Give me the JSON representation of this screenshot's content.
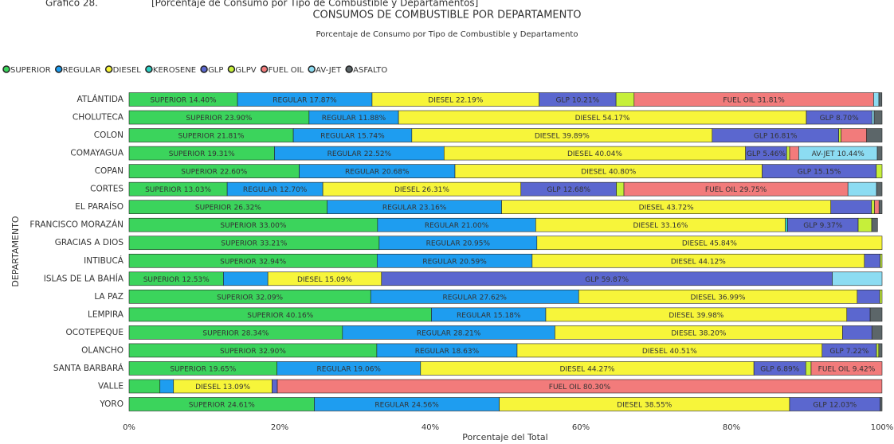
{
  "chart_data": {
    "type": "stacked_barh",
    "caption_label": "Gráfico 28.",
    "caption_text": "[Porcentaje de Consumo por Tipo de Combustible y Departamentos]",
    "title": "CONSUMOS DE COMBUSTIBLE POR DEPARTAMENTO",
    "subtitle": "Porcentaje de Consumo por Tipo de Combustible y Departamento",
    "y_label": "DEPARTAMENTO",
    "x_label": "Porcentaje del Total",
    "categories": [
      "ATLÁNTIDA",
      "CHOLUTECA",
      "COLON",
      "COMAYAGUA",
      "COPAN",
      "CORTES",
      "EL PARAÍSO",
      "FRANCISCO MORAZÁN",
      "GRACIAS A DIOS",
      "INTIBUCÁ",
      "ISLAS DE LA BAHÍA",
      "LA PAZ",
      "LEMPIRA",
      "OCOTEPEQUE",
      "OLANCHO",
      "SANTA BARBARÁ",
      "VALLE",
      "YORO"
    ],
    "xlim": [
      0,
      100
    ],
    "xticks": [
      {
        "value": 0,
        "label": "0%"
      },
      {
        "value": 20,
        "label": "20%"
      },
      {
        "value": 40,
        "label": "40%"
      },
      {
        "value": 60,
        "label": "60%"
      },
      {
        "value": 80,
        "label": "80%"
      },
      {
        "value": 100,
        "label": "100%"
      }
    ],
    "legend": "top-left",
    "series": [
      {
        "name": "SUPERIOR",
        "color": "#3bd45c",
        "values": [
          14.4,
          23.9,
          21.81,
          19.31,
          22.6,
          13.03,
          26.32,
          33.0,
          33.21,
          32.94,
          12.53,
          32.09,
          40.16,
          28.34,
          32.9,
          19.65,
          4.1,
          24.61
        ],
        "value_labels": [
          "14.40%",
          "23.90%",
          "21.81%",
          "19.31%",
          "22.60%",
          "13.03%",
          "26.32%",
          "33.00%",
          "33.21%",
          "32.94%",
          "12.53%",
          "32.09%",
          "40.16%",
          "28.34%",
          "32.90%",
          "19.65%",
          null,
          "24.61%"
        ]
      },
      {
        "name": "REGULAR",
        "color": "#1e9df0",
        "values": [
          17.87,
          11.88,
          15.74,
          22.52,
          20.68,
          12.7,
          23.16,
          21.0,
          20.95,
          20.59,
          5.9,
          27.62,
          15.18,
          28.21,
          18.63,
          19.06,
          1.8,
          24.56
        ],
        "value_labels": [
          "17.87%",
          "11.88%",
          "15.74%",
          "22.52%",
          "20.68%",
          "12.70%",
          "23.16%",
          "21.00%",
          "20.95%",
          "20.59%",
          null,
          "27.62%",
          "15.18%",
          "28.21%",
          "18.63%",
          "19.06%",
          null,
          "24.56%"
        ]
      },
      {
        "name": "DIESEL",
        "color": "#f7f53a",
        "values": [
          22.19,
          54.17,
          39.89,
          40.04,
          40.8,
          26.31,
          43.72,
          33.16,
          45.84,
          44.12,
          15.09,
          36.99,
          39.98,
          38.2,
          40.51,
          44.27,
          13.09,
          38.55
        ],
        "value_labels": [
          "22.19%",
          "54.17%",
          "39.89%",
          "40.04%",
          "40.80%",
          "26.31%",
          "43.72%",
          "33.16%",
          "45.84%",
          "44.12%",
          "15.09%",
          "36.99%",
          "39.98%",
          "38.20%",
          "40.51%",
          "44.27%",
          "13.09%",
          "38.55%"
        ]
      },
      {
        "name": "KEROSENE",
        "color": "#2fd0c4",
        "values": [
          0,
          0,
          0,
          0,
          0,
          0,
          0,
          0.3,
          0,
          0,
          0,
          0,
          0,
          0,
          0,
          0,
          0,
          0
        ],
        "value_labels": [
          null,
          null,
          null,
          null,
          null,
          null,
          null,
          null,
          null,
          null,
          null,
          null,
          null,
          null,
          null,
          null,
          null,
          null
        ]
      },
      {
        "name": "GLP",
        "color": "#5b67cf",
        "values": [
          10.21,
          8.7,
          16.81,
          5.46,
          15.15,
          12.68,
          5.4,
          9.37,
          0,
          2.1,
          59.87,
          3.0,
          3.1,
          3.9,
          7.22,
          6.89,
          0.7,
          12.03
        ],
        "value_labels": [
          "10.21%",
          "8.70%",
          "16.81%",
          "5.46%",
          "15.15%",
          "12.68%",
          null,
          "9.37%",
          null,
          null,
          "59.87%",
          null,
          null,
          null,
          "7.22%",
          "6.89%",
          null,
          "12.03%"
        ]
      },
      {
        "name": "GLPV",
        "color": "#c6ef3a",
        "values": [
          2.4,
          0,
          0.3,
          0.4,
          0.77,
          1.0,
          0.4,
          1.8,
          0,
          0.25,
          0,
          0.3,
          0,
          0,
          0.3,
          0.71,
          0,
          0
        ],
        "value_labels": [
          null,
          null,
          null,
          null,
          null,
          null,
          null,
          null,
          null,
          null,
          null,
          null,
          null,
          null,
          null,
          null,
          null,
          null
        ]
      },
      {
        "name": "FUEL OIL",
        "color": "#f27b7b",
        "values": [
          31.81,
          0,
          3.4,
          1.2,
          0,
          29.75,
          0.6,
          0,
          0,
          0,
          0,
          0,
          0,
          0,
          0,
          9.42,
          80.3,
          0
        ],
        "value_labels": [
          "31.81%",
          null,
          null,
          null,
          null,
          "29.75%",
          null,
          null,
          null,
          null,
          null,
          null,
          null,
          null,
          null,
          "9.42%",
          "80.30%",
          null
        ]
      },
      {
        "name": "AV-JET",
        "color": "#8cdcf2",
        "values": [
          0.7,
          0.3,
          0,
          10.44,
          0,
          3.8,
          0,
          0,
          0,
          0,
          6.61,
          0,
          0,
          0,
          0,
          0,
          0,
          0
        ],
        "value_labels": [
          null,
          null,
          null,
          "10.44%",
          null,
          null,
          null,
          null,
          null,
          null,
          null,
          null,
          null,
          null,
          null,
          null,
          null,
          null
        ]
      },
      {
        "name": "ASFALTO",
        "color": "#5c6669",
        "values": [
          0.4,
          1.05,
          2.05,
          0.63,
          0,
          0.73,
          0.4,
          0.77,
          0,
          0,
          0,
          0,
          1.58,
          1.35,
          0.44,
          0,
          0,
          0.25
        ],
        "value_labels": [
          null,
          null,
          null,
          null,
          null,
          null,
          null,
          null,
          null,
          null,
          null,
          null,
          null,
          null,
          null,
          null,
          null,
          null
        ]
      }
    ]
  }
}
